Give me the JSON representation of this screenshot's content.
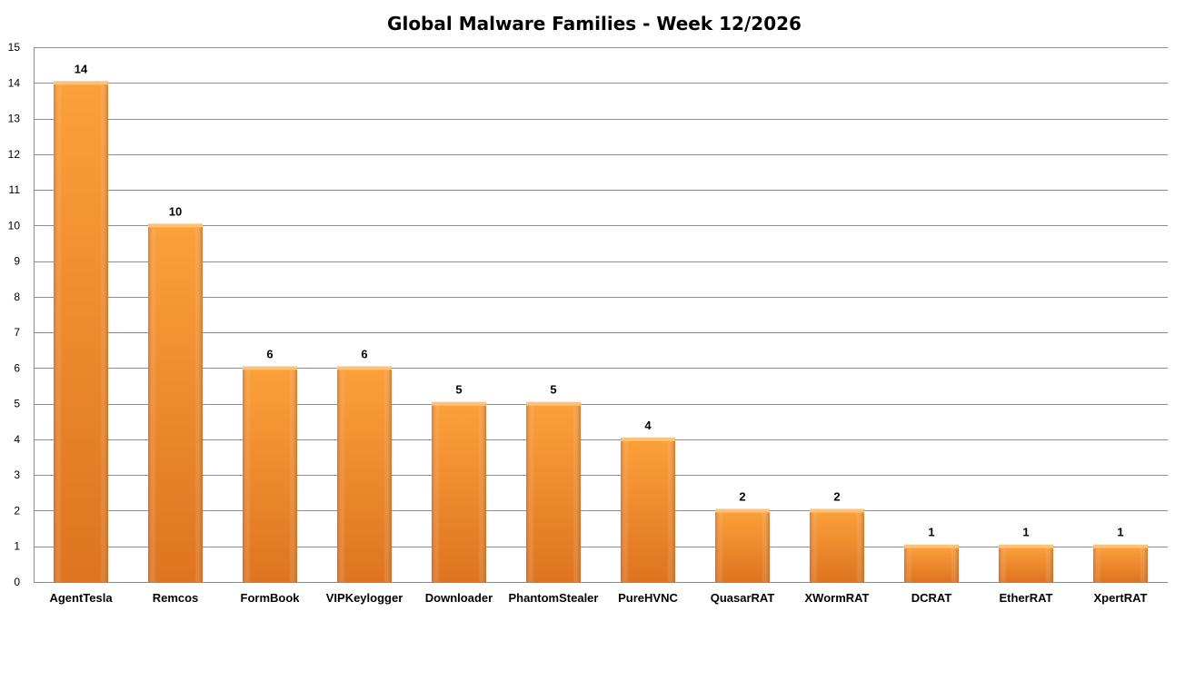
{
  "chart_data": {
    "type": "bar",
    "title": "Global Malware Families - Week 12/2026",
    "xlabel": "",
    "ylabel": "",
    "ylim": [
      0,
      15
    ],
    "y_ticks": [
      "0",
      "1",
      "2",
      "3",
      "4",
      "5",
      "6",
      "7",
      "8",
      "9",
      "10",
      "11",
      "12",
      "13",
      "14",
      "15"
    ],
    "grid": true,
    "legend": "none",
    "categories": [
      "AgentTesla",
      "Remcos",
      "FormBook",
      "VIPKeylogger",
      "Downloader",
      "PhantomStealer",
      "PureHVNC",
      "QuasarRAT",
      "XWormRAT",
      "DCRAT",
      "EtherRAT",
      "XpertRAT"
    ],
    "values": [
      14,
      10,
      6,
      6,
      5,
      5,
      4,
      2,
      2,
      1,
      1,
      1
    ],
    "data_labels": [
      "14",
      "10",
      "6",
      "6",
      "5",
      "5",
      "4",
      "2",
      "2",
      "1",
      "1",
      "1"
    ],
    "bar_color": "#F7922B",
    "bar_color_dark": "#E0781C",
    "bar_top_color": "#FBC37A"
  }
}
